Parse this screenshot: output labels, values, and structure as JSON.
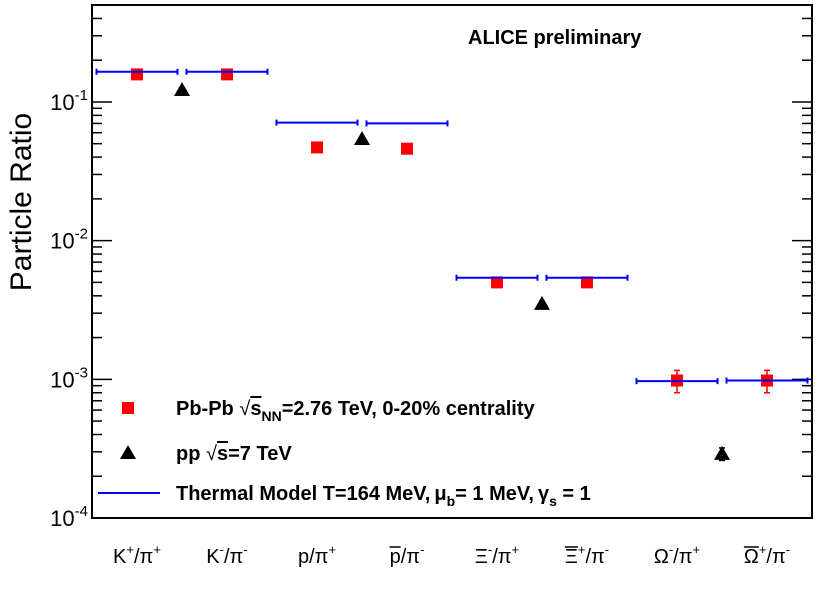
{
  "chart_data": {
    "type": "scatter",
    "yscale": "log",
    "ylim": [
      0.0001,
      0.5
    ],
    "ylabel": "Particle Ratio",
    "annotation": "ALICE preliminary",
    "y_ticks": [
      {
        "value": 0.1,
        "base": "10",
        "exp": "-1"
      },
      {
        "value": 0.01,
        "base": "10",
        "exp": "-2"
      },
      {
        "value": 0.001,
        "base": "10",
        "exp": "-3"
      },
      {
        "value": 0.0001,
        "base": "10",
        "exp": "-4"
      }
    ],
    "categories": [
      {
        "main": "K",
        "sup": "+",
        "rest": "/π",
        "sup2": "+"
      },
      {
        "main": "K",
        "sup": "-",
        "rest": "/π",
        "sup2": "-"
      },
      {
        "main": "p",
        "sup": "",
        "rest": "/π",
        "sup2": "+"
      },
      {
        "main": "p",
        "sup": "",
        "rest": "/π",
        "sup2": "-",
        "bar": true
      },
      {
        "main": "Ξ",
        "sup": "-",
        "rest": "/π",
        "sup2": "+"
      },
      {
        "main": "Ξ",
        "sup": "+",
        "rest": "/π",
        "sup2": "-",
        "bar": true
      },
      {
        "main": "Ω",
        "sup": "-",
        "rest": "/π",
        "sup2": "+"
      },
      {
        "main": "Ω",
        "sup": "+",
        "rest": "/π",
        "sup2": "-",
        "bar": true
      }
    ],
    "series": [
      {
        "name": "Pb-Pb",
        "marker": "square",
        "color": "#ff0000",
        "points": [
          {
            "category": 0,
            "value": 0.158,
            "err": 0.006
          },
          {
            "category": 1,
            "value": 0.158,
            "err": 0.006
          },
          {
            "category": 2,
            "value": 0.047,
            "err": 0.002
          },
          {
            "category": 3,
            "value": 0.046,
            "err": 0.002
          },
          {
            "category": 4,
            "value": 0.005,
            "err": 0.0004
          },
          {
            "category": 5,
            "value": 0.005,
            "err": 0.0004
          },
          {
            "category": 6,
            "value": 0.00098,
            "err": 0.00018
          },
          {
            "category": 7,
            "value": 0.00098,
            "err": 0.00018
          }
        ]
      },
      {
        "name": "pp",
        "marker": "triangle",
        "color": "#000000",
        "points": [
          {
            "position": 0.5,
            "value": 0.122
          },
          {
            "position": 2.5,
            "value": 0.054
          },
          {
            "position": 4.5,
            "value": 0.0035
          },
          {
            "position": 6.5,
            "value": 0.00029,
            "err": 3e-05
          }
        ]
      },
      {
        "name": "Thermal Model",
        "marker": "hline",
        "color": "#0000ff",
        "points": [
          {
            "category": 0,
            "value": 0.165
          },
          {
            "category": 1,
            "value": 0.165
          },
          {
            "category": 2,
            "value": 0.071
          },
          {
            "category": 3,
            "value": 0.07
          },
          {
            "category": 4,
            "value": 0.0054
          },
          {
            "category": 5,
            "value": 0.0054
          },
          {
            "category": 6,
            "value": 0.00097
          },
          {
            "category": 7,
            "value": 0.00098
          }
        ]
      }
    ],
    "legend": [
      {
        "marker": "square",
        "color": "#ff0000",
        "prefix": "Pb-Pb  ",
        "sqrt": "s",
        "sub": "NN",
        "suffix": "=2.76 TeV, 0-20% centrality"
      },
      {
        "marker": "triangle",
        "color": "#000000",
        "prefix": "pp  ",
        "sqrt": "s",
        "sub": "",
        "suffix": "=7 TeV"
      },
      {
        "marker": "hline",
        "color": "#0000ff",
        "text": "Thermal Model T=164 MeV,",
        "mu": "μ",
        "mu_sub": "b",
        "mid": "= 1 MeV,",
        "gamma": "γ",
        "gamma_sub": "s",
        "end": " = 1"
      }
    ]
  }
}
